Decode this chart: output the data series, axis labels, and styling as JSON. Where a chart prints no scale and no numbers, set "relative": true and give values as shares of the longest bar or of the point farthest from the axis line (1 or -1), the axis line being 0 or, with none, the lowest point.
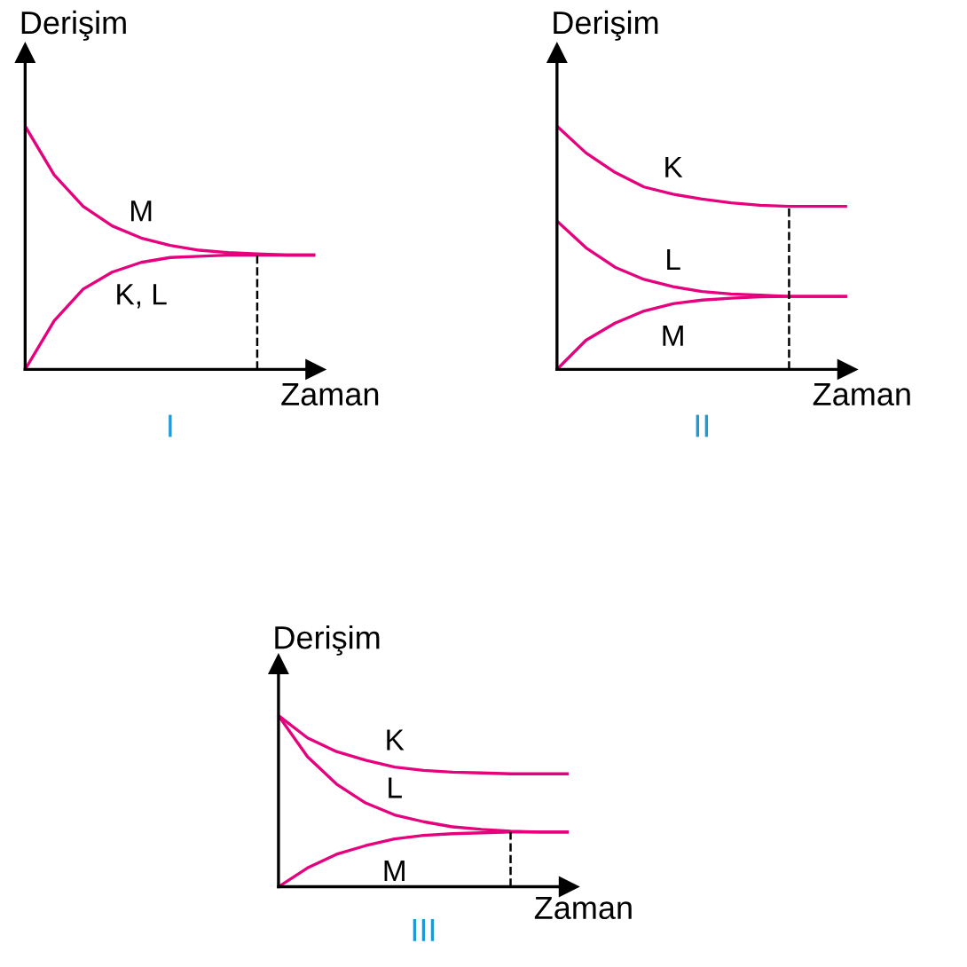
{
  "chart_data": [
    {
      "type": "line",
      "relative": true,
      "title": "I",
      "ylabel": "Derişim",
      "xlabel": "Zaman",
      "categories": [
        null,
        null,
        null,
        null,
        null,
        null,
        null,
        null,
        null,
        null,
        null
      ],
      "series": [
        {
          "name": "M",
          "color": "#e6007e",
          "values": [
            1,
            0.8,
            0.67,
            0.59,
            0.54,
            0.51,
            0.49,
            0.48,
            0.475,
            0.47,
            0.47
          ]
        },
        {
          "name": "K, L",
          "color": "#e6007e",
          "values": [
            0,
            0.2,
            0.33,
            0.4,
            0.44,
            0.46,
            0.465,
            0.47,
            0.47,
            0.47,
            0.47
          ]
        }
      ]
    },
    {
      "type": "line",
      "relative": true,
      "title": "II",
      "ylabel": "Derişim",
      "xlabel": "Zaman",
      "categories": [
        null,
        null,
        null,
        null,
        null,
        null,
        null,
        null,
        null,
        null,
        null
      ],
      "series": [
        {
          "name": "K",
          "color": "#e6007e",
          "values": [
            1,
            0.89,
            0.81,
            0.75,
            0.72,
            0.7,
            0.685,
            0.675,
            0.67,
            0.67,
            0.67
          ]
        },
        {
          "name": "L",
          "color": "#e6007e",
          "values": [
            0.61,
            0.5,
            0.42,
            0.37,
            0.34,
            0.32,
            0.31,
            0.305,
            0.3,
            0.3,
            0.3
          ]
        },
        {
          "name": "M",
          "color": "#e6007e",
          "values": [
            0,
            0.12,
            0.19,
            0.24,
            0.27,
            0.285,
            0.293,
            0.298,
            0.3,
            0.3,
            0.3
          ]
        }
      ]
    },
    {
      "type": "line",
      "relative": true,
      "title": "III",
      "ylabel": "Derişim",
      "xlabel": "Zaman",
      "categories": [
        null,
        null,
        null,
        null,
        null,
        null,
        null,
        null,
        null,
        null,
        null
      ],
      "series": [
        {
          "name": "K",
          "color": "#e6007e",
          "values": [
            1,
            0.87,
            0.79,
            0.74,
            0.7,
            0.68,
            0.67,
            0.665,
            0.66,
            0.66,
            0.66
          ]
        },
        {
          "name": "L",
          "color": "#e6007e",
          "values": [
            1,
            0.76,
            0.6,
            0.49,
            0.42,
            0.38,
            0.35,
            0.335,
            0.325,
            0.32,
            0.32
          ]
        },
        {
          "name": "M",
          "color": "#e6007e",
          "values": [
            0,
            0.11,
            0.19,
            0.24,
            0.28,
            0.3,
            0.31,
            0.315,
            0.32,
            0.32,
            0.32
          ]
        }
      ]
    }
  ]
}
